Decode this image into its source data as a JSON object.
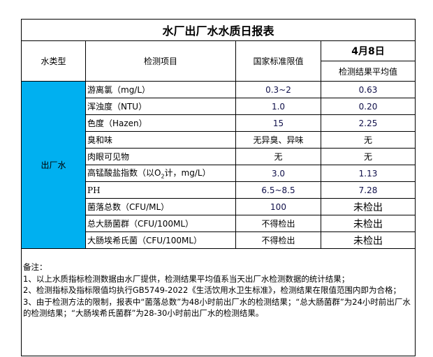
{
  "title": "水厂出厂水水质日报表",
  "headers": {
    "type": "水类型",
    "item": "检测项目",
    "limit": "国家标准限值",
    "date": "4月8日",
    "result": "检测结果平均值"
  },
  "water_type": "出厂水",
  "type_color": "#00b0f0",
  "rows": [
    {
      "item": "游离氯（mg/L）",
      "limit": "0.3~2",
      "result": "0.63"
    },
    {
      "item": "浑浊度（NTU）",
      "limit": "1.0",
      "result": "0.20"
    },
    {
      "item": "色度（Hazen）",
      "limit": "15",
      "result": "2.25"
    },
    {
      "item": "臭和味",
      "limit": "无异臭、异味",
      "result": "无"
    },
    {
      "item": "肉眼可见物",
      "limit": "无",
      "result": "无"
    },
    {
      "item_prefix": "高锰酸盐指数（以O",
      "item_sub": "2",
      "item_suffix": "计，mg/L）",
      "limit": "3.0",
      "result": "1.13"
    },
    {
      "item": "PH",
      "limit": "6.5~8.5",
      "result": "7.28"
    },
    {
      "item": "菌落总数（CFU/ML）",
      "limit": "100",
      "result": "未检出"
    },
    {
      "item": "总大肠菌群（CFU/100ML）",
      "limit": "不得检出",
      "result": "未检出"
    },
    {
      "item": "大肠埃希氏菌（CFU/100ML）",
      "limit": "不得检出",
      "result": "未检出"
    }
  ],
  "notes": {
    "heading": "备注：",
    "lines": [
      "1、以上水质指标检测数据由水厂提供，检测结果平均值系当天出厂水检测数据的统计结果；",
      "2、检测指标及指标限值均执行GB5749-2022《生活饮用水卫生标准》，检测结果在限值范围内即为合格；",
      "3、由于检测方法的限制，报表中“菌落总数”为48小时前出厂水的检测结果；“总大肠菌群”为24小时前出厂水的检测结果；“大肠埃希氏菌群”为28-30小时前出厂水的检测结果。"
    ]
  }
}
